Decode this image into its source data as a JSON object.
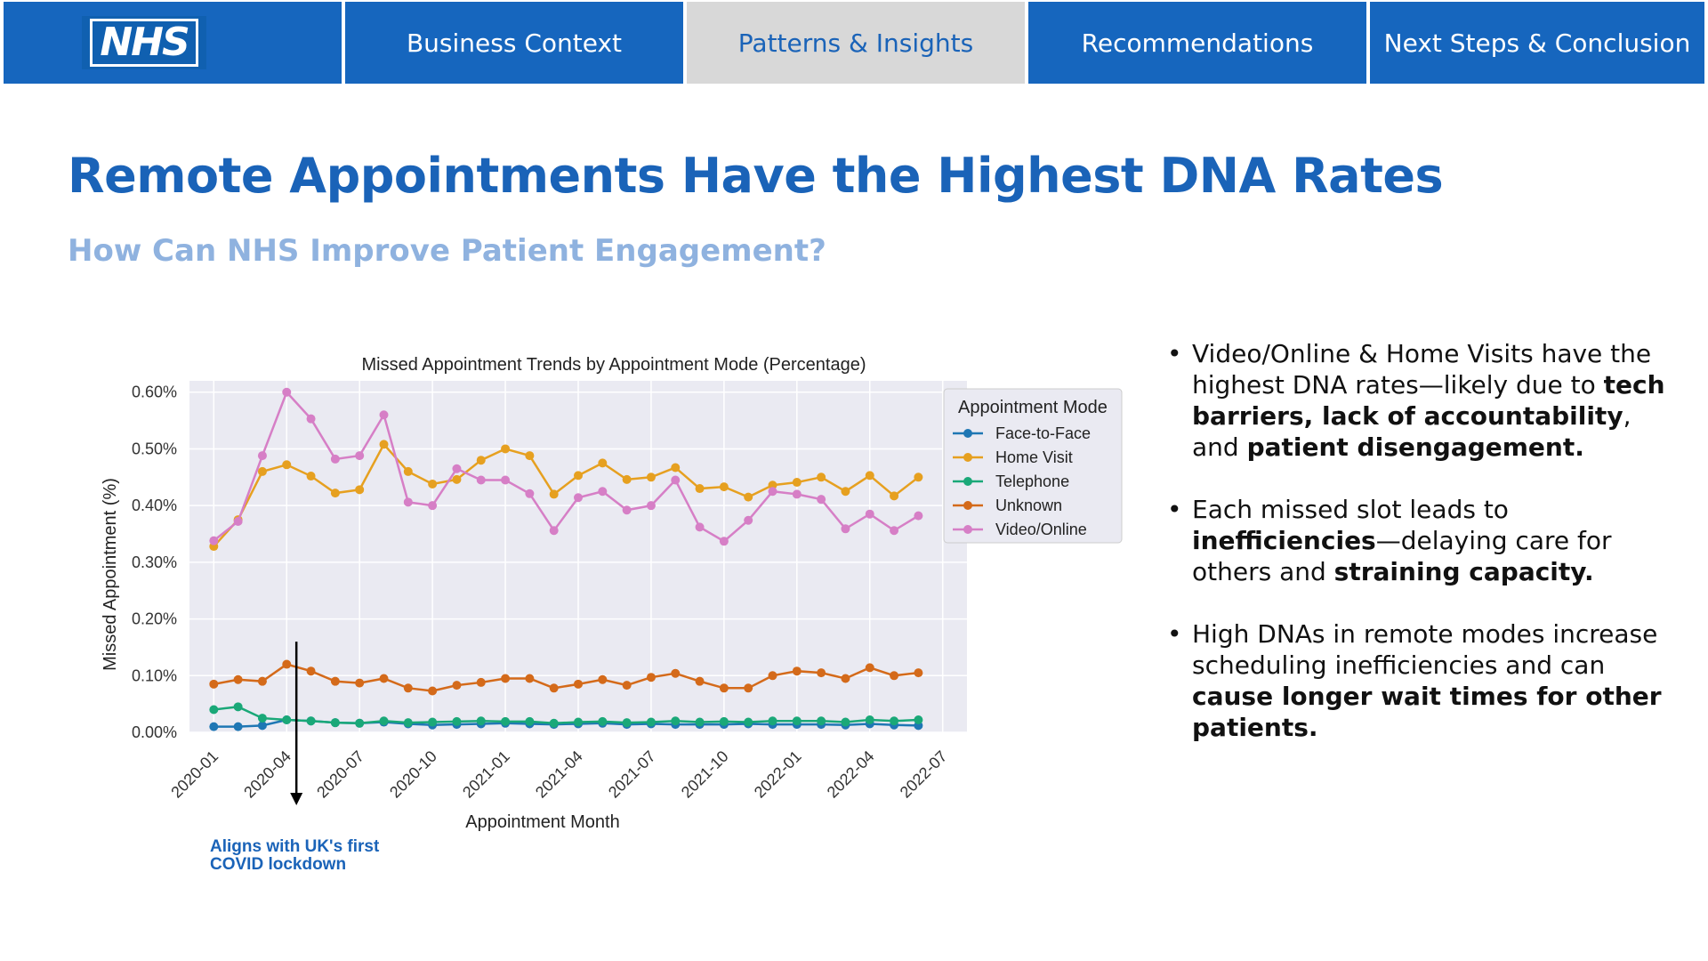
{
  "nav": {
    "logo": "NHS",
    "tabs": [
      {
        "label": "Business Context"
      },
      {
        "label": "Patterns & Insights"
      },
      {
        "label": "Recommendations"
      },
      {
        "label": "Next Steps & Conclusion"
      }
    ],
    "active_index": 1
  },
  "heading": {
    "title": "Remote Appointments Have the Highest DNA Rates",
    "subtitle": "How Can NHS Improve Patient Engagement?"
  },
  "colors": {
    "nav_bg": "#1666be",
    "nav_active": "#d8d8d8",
    "title": "#1a63b8",
    "subtitle": "#8fb2df",
    "plot_bg": "#eaeaf2"
  },
  "chart_data": {
    "type": "line",
    "title": "Missed Appointment Trends by Appointment Mode (Percentage)",
    "xlabel": "Appointment Month",
    "ylabel": "Missed Appointment (%)",
    "ylim": [
      0,
      0.0062
    ],
    "yticks": [
      0,
      0.001,
      0.002,
      0.003,
      0.004,
      0.005,
      0.006
    ],
    "ytick_labels": [
      "0.00%",
      "0.10%",
      "0.20%",
      "0.30%",
      "0.40%",
      "0.50%",
      "0.60%"
    ],
    "xticks": [
      0,
      3,
      6,
      9,
      12,
      15,
      18,
      21,
      24,
      27,
      30
    ],
    "xtick_labels": [
      "2020-01",
      "2020-04",
      "2020-07",
      "2020-10",
      "2021-01",
      "2021-04",
      "2021-07",
      "2021-10",
      "2022-01",
      "2022-04",
      "2022-07"
    ],
    "x": [
      0,
      1,
      2,
      3,
      4,
      5,
      6,
      7,
      8,
      9,
      10,
      11,
      12,
      13,
      14,
      15,
      16,
      17,
      18,
      19,
      20,
      21,
      22,
      23,
      24,
      25,
      26,
      27,
      28,
      29
    ],
    "grid": true,
    "legend_title": "Appointment Mode",
    "legend_position": "outside-right",
    "series": [
      {
        "name": "Face-to-Face",
        "color": "#1f77b4",
        "values": [
          0.0001,
          0.0001,
          0.00012,
          0.00022,
          0.0002,
          0.00017,
          0.00016,
          0.00018,
          0.00015,
          0.00013,
          0.00014,
          0.00015,
          0.00016,
          0.00015,
          0.00014,
          0.00015,
          0.00016,
          0.00014,
          0.00015,
          0.00014,
          0.00014,
          0.00014,
          0.00015,
          0.00014,
          0.00014,
          0.00014,
          0.00013,
          0.00015,
          0.00013,
          0.00012
        ]
      },
      {
        "name": "Home Visit",
        "color": "#e6a020",
        "values": [
          0.00328,
          0.00375,
          0.0046,
          0.00472,
          0.00452,
          0.00422,
          0.00428,
          0.00508,
          0.0046,
          0.00438,
          0.00446,
          0.0048,
          0.005,
          0.00488,
          0.0042,
          0.00453,
          0.00475,
          0.00446,
          0.0045,
          0.00467,
          0.0043,
          0.00433,
          0.00415,
          0.00436,
          0.00441,
          0.0045,
          0.00425,
          0.00453,
          0.00417,
          0.0045
        ]
      },
      {
        "name": "Telephone",
        "color": "#1aa878",
        "values": [
          0.0004,
          0.00045,
          0.00025,
          0.00022,
          0.0002,
          0.00017,
          0.00016,
          0.0002,
          0.00017,
          0.00018,
          0.00019,
          0.0002,
          0.00019,
          0.00019,
          0.00016,
          0.00018,
          0.00019,
          0.00017,
          0.00018,
          0.0002,
          0.00018,
          0.00019,
          0.00018,
          0.0002,
          0.0002,
          0.0002,
          0.00018,
          0.00022,
          0.0002,
          0.00022
        ]
      },
      {
        "name": "Unknown",
        "color": "#d46a1a",
        "values": [
          0.00085,
          0.00093,
          0.0009,
          0.0012,
          0.00108,
          0.0009,
          0.00087,
          0.00095,
          0.00078,
          0.00073,
          0.00083,
          0.00088,
          0.00095,
          0.00095,
          0.00078,
          0.00085,
          0.00093,
          0.00083,
          0.00097,
          0.00104,
          0.0009,
          0.00078,
          0.00078,
          0.001,
          0.00108,
          0.00105,
          0.00095,
          0.00114,
          0.001,
          0.00105
        ]
      },
      {
        "name": "Video/Online",
        "color": "#d67fc6",
        "values": [
          0.00338,
          0.00372,
          0.00488,
          0.006,
          0.00553,
          0.00482,
          0.00488,
          0.0056,
          0.00406,
          0.004,
          0.00465,
          0.00445,
          0.00445,
          0.00421,
          0.00356,
          0.00414,
          0.00425,
          0.00392,
          0.004,
          0.00445,
          0.00362,
          0.00337,
          0.00374,
          0.00425,
          0.0042,
          0.00411,
          0.00359,
          0.00385,
          0.00356,
          0.00382
        ]
      }
    ]
  },
  "annotation": {
    "line1": "Aligns with UK's first",
    "line2": "COVID lockdown",
    "x": 3.4
  },
  "bullets": [
    {
      "parts": [
        {
          "t": "Video/Online & Home Visits have the highest DNA rates—likely due to ",
          "b": false
        },
        {
          "t": "tech barriers, lack of accountability",
          "b": true
        },
        {
          "t": ", and ",
          "b": false
        },
        {
          "t": "patient disengagement.",
          "b": true
        }
      ]
    },
    {
      "parts": [
        {
          "t": "Each missed slot leads to ",
          "b": false
        },
        {
          "t": "inefficiencies",
          "b": true
        },
        {
          "t": "—delaying care for others and ",
          "b": false
        },
        {
          "t": "straining capacity.",
          "b": true
        }
      ]
    },
    {
      "parts": [
        {
          "t": "High DNAs in remote modes increase scheduling inefficiencies and can ",
          "b": false
        },
        {
          "t": "cause longer wait times for other patients.",
          "b": true
        }
      ]
    }
  ]
}
